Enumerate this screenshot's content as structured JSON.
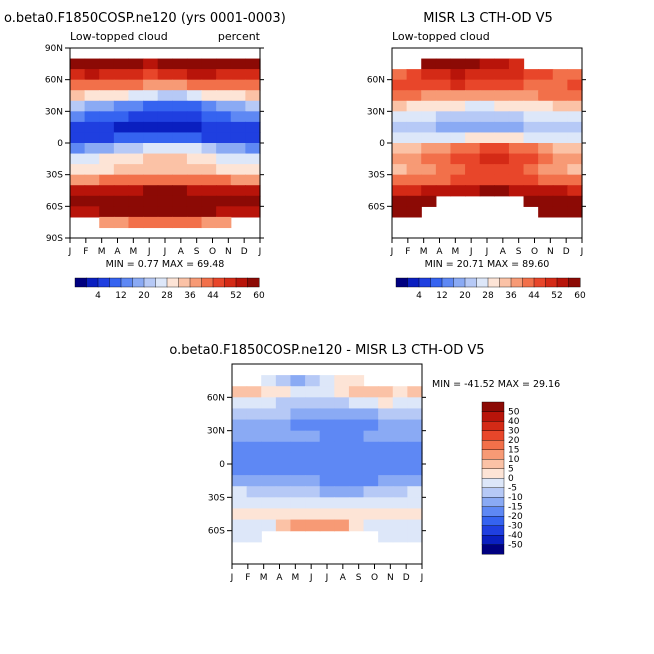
{
  "chart_data": [
    {
      "type": "heatmap",
      "title": "o.beta0.F1850COSP.ne120 (yrs 0001-0003)",
      "subtitle_left": "Low-topped cloud",
      "subtitle_right": "percent",
      "x_ticks": [
        "J",
        "F",
        "M",
        "A",
        "M",
        "J",
        "J",
        "A",
        "S",
        "O",
        "N",
        "D",
        "J"
      ],
      "y_ticks": [
        "90N",
        "60N",
        "30N",
        "0",
        "30S",
        "60S",
        "90S"
      ],
      "ylim": [
        -90,
        90
      ],
      "stats_text": "MIN =   0.77 MAX =  69.48",
      "min": 0.77,
      "max": 69.48,
      "colorbar_ticks": [
        "4",
        "12",
        "20",
        "28",
        "36",
        "44",
        "52",
        "60"
      ],
      "colorbar_levels": [
        0,
        4,
        8,
        12,
        16,
        20,
        24,
        28,
        32,
        36,
        40,
        44,
        48,
        52,
        56,
        60,
        64
      ],
      "lat_rows": [
        75,
        65,
        55,
        45,
        35,
        25,
        15,
        5,
        -5,
        -15,
        -25,
        -35,
        -45,
        -55,
        -65,
        -75
      ],
      "values": [
        [
          62,
          63,
          64,
          62,
          60,
          58,
          60,
          62,
          64,
          66,
          64,
          62,
          62
        ],
        [
          54,
          56,
          55,
          53,
          52,
          51,
          52,
          54,
          56,
          57,
          55,
          54,
          54
        ],
        [
          46,
          47,
          46,
          45,
          44,
          43,
          42,
          43,
          45,
          46,
          46,
          45,
          46
        ],
        [
          36,
          35,
          34,
          32,
          30,
          28,
          26,
          27,
          29,
          32,
          34,
          35,
          36
        ],
        [
          24,
          22,
          20,
          18,
          16,
          14,
          12,
          13,
          15,
          18,
          21,
          23,
          24
        ],
        [
          16,
          15,
          14,
          12,
          11,
          10,
          9,
          10,
          11,
          13,
          15,
          16,
          16
        ],
        [
          9,
          8,
          8,
          7,
          6,
          5,
          5,
          6,
          7,
          8,
          8,
          9,
          9
        ],
        [
          10,
          10,
          11,
          12,
          13,
          14,
          14,
          13,
          12,
          11,
          10,
          10,
          10
        ],
        [
          18,
          20,
          22,
          24,
          26,
          28,
          30,
          30,
          28,
          26,
          22,
          20,
          18
        ],
        [
          28,
          30,
          32,
          34,
          35,
          36,
          36,
          36,
          34,
          32,
          30,
          29,
          28
        ],
        [
          33,
          34,
          35,
          36,
          37,
          38,
          38,
          38,
          37,
          36,
          35,
          34,
          33
        ],
        [
          42,
          43,
          44,
          45,
          46,
          47,
          47,
          47,
          46,
          45,
          44,
          43,
          42
        ],
        [
          56,
          57,
          57,
          58,
          59,
          60,
          60,
          60,
          59,
          58,
          57,
          56,
          56
        ],
        [
          60,
          61,
          61,
          62,
          62,
          63,
          63,
          63,
          62,
          62,
          61,
          60,
          60
        ],
        [
          58,
          59,
          60,
          60,
          61,
          62,
          62,
          62,
          61,
          60,
          59,
          58,
          58
        ],
        [
          null,
          null,
          40,
          42,
          44,
          46,
          46,
          46,
          44,
          42,
          40,
          null,
          null
        ]
      ]
    },
    {
      "type": "heatmap",
      "title": "MISR L3 CTH-OD V5",
      "subtitle_left": "Low-topped cloud",
      "x_ticks": [
        "J",
        "F",
        "M",
        "A",
        "M",
        "J",
        "J",
        "A",
        "S",
        "O",
        "N",
        "D",
        "J"
      ],
      "y_ticks": [
        "60N",
        "30N",
        "0",
        "30S",
        "60S"
      ],
      "ylim": [
        -90,
        90
      ],
      "stats_text": "MIN =  20.71 MAX =  89.60",
      "min": 20.71,
      "max": 89.6,
      "colorbar_ticks": [
        "4",
        "12",
        "20",
        "28",
        "36",
        "44",
        "52",
        "60"
      ],
      "colorbar_levels": [
        0,
        4,
        8,
        12,
        16,
        20,
        24,
        28,
        32,
        36,
        40,
        44,
        48,
        52,
        56,
        60,
        64
      ],
      "lat_rows": [
        75,
        65,
        55,
        45,
        35,
        25,
        15,
        5,
        -5,
        -15,
        -25,
        -35,
        -45,
        -55,
        -65,
        -75
      ],
      "values": [
        [
          null,
          null,
          64,
          66,
          64,
          60,
          58,
          56,
          54,
          null,
          null,
          null,
          null
        ],
        [
          46,
          48,
          52,
          54,
          56,
          55,
          54,
          53,
          52,
          50,
          48,
          46,
          46
        ],
        [
          48,
          49,
          50,
          51,
          52,
          51,
          50,
          49,
          48,
          47,
          46,
          47,
          48
        ],
        [
          44,
          44,
          43,
          42,
          41,
          40,
          40,
          41,
          42,
          43,
          44,
          44,
          44
        ],
        [
          36,
          35,
          34,
          33,
          32,
          31,
          31,
          32,
          33,
          34,
          35,
          36,
          36
        ],
        [
          30,
          29,
          28,
          27,
          26,
          25,
          25,
          26,
          27,
          28,
          29,
          30,
          30
        ],
        [
          26,
          25,
          24,
          23,
          22,
          22,
          22,
          22,
          23,
          24,
          25,
          26,
          26
        ],
        [
          28,
          28,
          29,
          30,
          31,
          32,
          33,
          33,
          32,
          31,
          30,
          29,
          28
        ],
        [
          36,
          38,
          40,
          42,
          44,
          46,
          48,
          48,
          46,
          44,
          40,
          38,
          36
        ],
        [
          40,
          42,
          44,
          46,
          48,
          50,
          52,
          52,
          50,
          48,
          44,
          42,
          40
        ],
        [
          38,
          40,
          42,
          44,
          46,
          48,
          50,
          50,
          48,
          46,
          42,
          40,
          38
        ],
        [
          44,
          45,
          46,
          47,
          48,
          49,
          50,
          50,
          49,
          48,
          47,
          46,
          44
        ],
        [
          54,
          55,
          56,
          57,
          58,
          59,
          60,
          60,
          59,
          58,
          57,
          56,
          54
        ],
        [
          60,
          60,
          61,
          null,
          null,
          null,
          null,
          null,
          null,
          62,
          62,
          61,
          60
        ],
        [
          62,
          63,
          null,
          null,
          null,
          null,
          null,
          null,
          null,
          null,
          64,
          64,
          62
        ],
        [
          null,
          null,
          null,
          null,
          null,
          null,
          null,
          null,
          null,
          null,
          null,
          null,
          null
        ]
      ]
    },
    {
      "type": "heatmap",
      "title": "o.beta0.F1850COSP.ne120 - MISR L3 CTH-OD V5",
      "x_ticks": [
        "J",
        "F",
        "M",
        "A",
        "M",
        "J",
        "J",
        "A",
        "S",
        "O",
        "N",
        "D",
        "J"
      ],
      "y_ticks": [
        "60N",
        "30N",
        "0",
        "30S",
        "60S"
      ],
      "ylim": [
        -90,
        90
      ],
      "stats_text": "MIN = -41.52 MAX =  29.16",
      "min": -41.52,
      "max": 29.16,
      "colorbar_ticks": [
        "50",
        "40",
        "30",
        "20",
        "15",
        "10",
        "5",
        "0",
        "-5",
        "-10",
        "-15",
        "-20",
        "-30",
        "-40",
        "-50"
      ],
      "colorbar_levels": [
        -60,
        -50,
        -40,
        -30,
        -20,
        -15,
        -10,
        -5,
        0,
        5,
        10,
        15,
        20,
        30,
        40,
        50,
        60
      ],
      "lat_rows": [
        75,
        65,
        55,
        45,
        35,
        25,
        15,
        5,
        -5,
        -15,
        -25,
        -35,
        -45,
        -55,
        -65,
        -75
      ],
      "values": [
        [
          null,
          null,
          -4,
          -8,
          -12,
          -6,
          -2,
          2,
          4,
          null,
          null,
          null,
          null
        ],
        [
          6,
          8,
          4,
          0,
          -2,
          -4,
          -2,
          2,
          6,
          8,
          6,
          4,
          6
        ],
        [
          -2,
          -2,
          -4,
          -6,
          -8,
          -8,
          -8,
          -6,
          -3,
          -1,
          0,
          -2,
          -2
        ],
        [
          -8,
          -9,
          -9,
          -10,
          -11,
          -12,
          -14,
          -14,
          -13,
          -11,
          -10,
          -9,
          -8
        ],
        [
          -12,
          -13,
          -14,
          -15,
          -16,
          -17,
          -19,
          -19,
          -18,
          -16,
          -14,
          -13,
          -12
        ],
        [
          -14,
          -14,
          -14,
          -15,
          -15,
          -15,
          -16,
          -16,
          -16,
          -15,
          -14,
          -14,
          -14
        ],
        [
          -17,
          -17,
          -16,
          -16,
          -16,
          -17,
          -17,
          -16,
          -16,
          -16,
          -17,
          -17,
          -17
        ],
        [
          -18,
          -18,
          -18,
          -18,
          -18,
          -18,
          -19,
          -20,
          -20,
          -20,
          -20,
          -19,
          -18
        ],
        [
          -18,
          -18,
          -18,
          -18,
          -18,
          -18,
          -18,
          -18,
          -18,
          -18,
          -18,
          -18,
          -18
        ],
        [
          -12,
          -12,
          -12,
          -12,
          -13,
          -14,
          -16,
          -16,
          -16,
          -16,
          -14,
          -13,
          -12
        ],
        [
          -5,
          -6,
          -7,
          -8,
          -9,
          -10,
          -12,
          -12,
          -11,
          -10,
          -7,
          -6,
          -5
        ],
        [
          -2,
          -2,
          -2,
          -2,
          -2,
          -2,
          -3,
          -3,
          -3,
          -3,
          -3,
          -3,
          -2
        ],
        [
          2,
          2,
          1,
          1,
          1,
          2,
          3,
          3,
          3,
          2,
          2,
          2,
          2
        ],
        [
          -2,
          -2,
          -2,
          6,
          10,
          12,
          12,
          10,
          4,
          -2,
          -2,
          -2,
          -2
        ],
        [
          -4,
          -4,
          null,
          null,
          null,
          null,
          null,
          null,
          null,
          null,
          -3,
          -4,
          -4
        ],
        [
          null,
          null,
          null,
          null,
          null,
          null,
          null,
          null,
          null,
          null,
          null,
          null,
          null
        ]
      ]
    }
  ]
}
